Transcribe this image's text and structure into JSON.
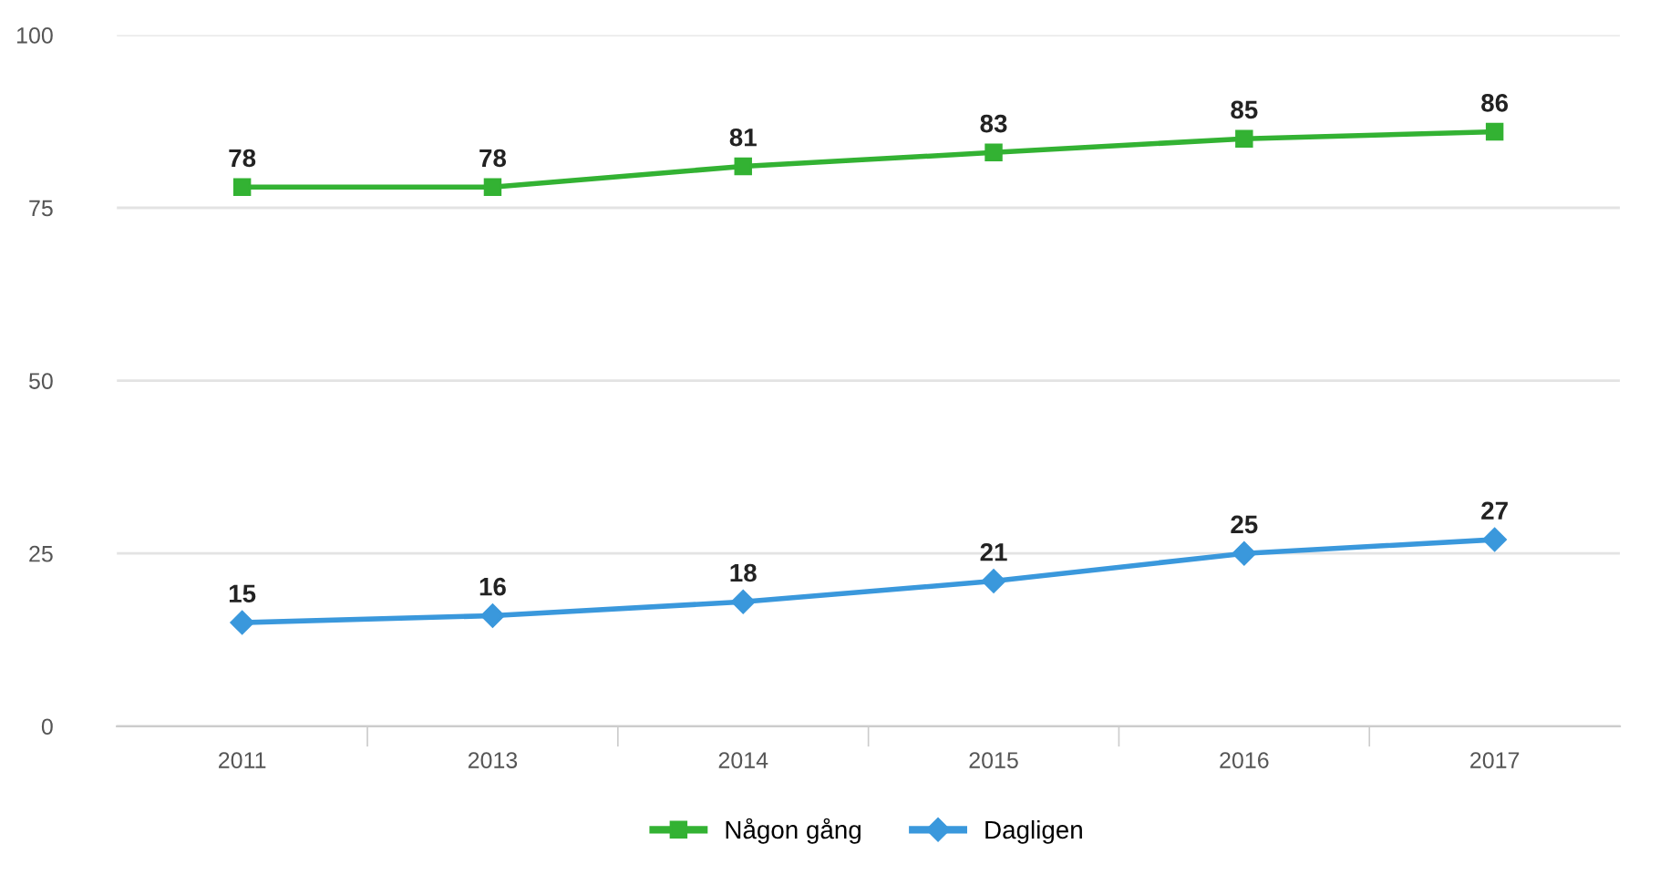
{
  "chart_data": {
    "type": "line",
    "categories": [
      "2011",
      "2013",
      "2014",
      "2015",
      "2016",
      "2017"
    ],
    "series": [
      {
        "name": "Någon gång",
        "color": "#33b233",
        "marker": "square",
        "values": [
          78,
          78,
          81,
          83,
          85,
          86
        ]
      },
      {
        "name": "Dagligen",
        "color": "#3a98dc",
        "marker": "diamond",
        "values": [
          15,
          16,
          18,
          21,
          25,
          27
        ]
      }
    ],
    "ylim": [
      0,
      100
    ],
    "yticks": [
      0,
      25,
      50,
      75,
      100
    ],
    "grid": "y",
    "legend": "bottom",
    "data_labels": true,
    "line_style": "solid"
  }
}
